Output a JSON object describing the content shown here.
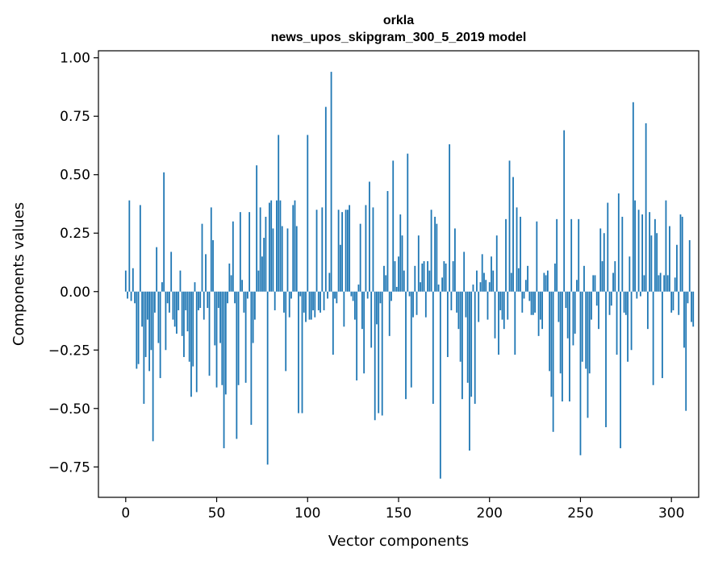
{
  "chart_data": {
    "type": "bar",
    "title_lines": [
      "orkla",
      "news_upos_skipgram_300_5_2019 model"
    ],
    "xlabel": "Vector components",
    "ylabel": "Components values",
    "xlim": [
      -15,
      315
    ],
    "ylim": [
      -0.88,
      1.03
    ],
    "xticks": [
      0,
      50,
      100,
      150,
      200,
      250,
      300
    ],
    "xtick_labels": [
      "0",
      "50",
      "100",
      "150",
      "200",
      "250",
      "300"
    ],
    "yticks": [
      -0.75,
      -0.5,
      -0.25,
      0.0,
      0.25,
      0.5,
      0.75,
      1.0
    ],
    "ytick_labels": [
      "−0.75",
      "−0.50",
      "−0.25",
      "0.00",
      "0.25",
      "0.50",
      "0.75",
      "1.00"
    ],
    "grid": false,
    "bar_color": "#1f77b4",
    "bar_width": 0.8,
    "values": [
      0.09,
      -0.03,
      0.39,
      -0.04,
      0.1,
      -0.05,
      -0.33,
      -0.31,
      0.37,
      -0.15,
      -0.48,
      -0.28,
      -0.12,
      -0.34,
      -0.25,
      -0.64,
      -0.09,
      0.19,
      -0.22,
      -0.37,
      0.04,
      0.51,
      -0.25,
      -0.05,
      -0.09,
      0.17,
      -0.12,
      -0.15,
      -0.18,
      -0.08,
      0.09,
      -0.19,
      -0.28,
      -0.08,
      -0.17,
      -0.3,
      -0.45,
      -0.32,
      0.04,
      -0.43,
      -0.08,
      -0.07,
      0.29,
      -0.12,
      0.16,
      -0.07,
      -0.36,
      0.36,
      0.22,
      -0.23,
      -0.41,
      -0.07,
      -0.22,
      -0.4,
      -0.67,
      -0.44,
      -0.05,
      0.12,
      0.07,
      0.3,
      -0.05,
      -0.63,
      -0.4,
      0.34,
      0.05,
      -0.09,
      -0.39,
      -0.03,
      0.34,
      -0.57,
      -0.22,
      -0.12,
      0.54,
      0.09,
      0.36,
      0.15,
      0.23,
      0.32,
      -0.74,
      0.38,
      0.39,
      0.27,
      -0.08,
      0.39,
      0.67,
      0.39,
      0.28,
      -0.09,
      -0.34,
      0.27,
      -0.11,
      -0.03,
      0.37,
      0.39,
      0.28,
      -0.52,
      -0.02,
      -0.52,
      -0.09,
      -0.13,
      0.67,
      -0.12,
      -0.12,
      -0.08,
      -0.11,
      0.35,
      -0.08,
      -0.09,
      0.36,
      -0.08,
      0.79,
      -0.03,
      0.08,
      0.94,
      -0.27,
      -0.03,
      -0.05,
      0.35,
      0.2,
      0.34,
      -0.15,
      0.35,
      0.35,
      0.37,
      -0.02,
      -0.04,
      -0.12,
      -0.38,
      0.03,
      0.29,
      -0.16,
      -0.35,
      0.37,
      -0.03,
      0.47,
      -0.24,
      0.36,
      -0.55,
      -0.14,
      -0.52,
      -0.05,
      -0.53,
      0.11,
      0.07,
      0.43,
      -0.19,
      -0.04,
      0.56,
      0.13,
      0.02,
      0.15,
      0.33,
      0.24,
      0.09,
      -0.46,
      0.59,
      -0.02,
      -0.41,
      -0.11,
      0.11,
      -0.1,
      0.24,
      0.04,
      0.12,
      0.13,
      -0.11,
      0.13,
      0.09,
      0.35,
      -0.48,
      0.32,
      0.29,
      0.03,
      -0.8,
      0.06,
      0.13,
      0.12,
      -0.28,
      0.63,
      -0.08,
      0.13,
      0.27,
      -0.09,
      -0.16,
      -0.3,
      -0.46,
      0.17,
      -0.11,
      -0.39,
      -0.68,
      -0.45,
      0.03,
      -0.48,
      0.09,
      -0.13,
      0.04,
      0.16,
      0.08,
      0.05,
      -0.12,
      0.04,
      0.15,
      0.09,
      -0.2,
      0.24,
      -0.27,
      -0.08,
      -0.12,
      -0.16,
      0.31,
      -0.12,
      0.56,
      0.08,
      0.49,
      -0.27,
      0.36,
      0.1,
      0.32,
      -0.09,
      -0.03,
      0.05,
      0.11,
      -0.04,
      -0.1,
      -0.1,
      -0.09,
      0.3,
      -0.19,
      -0.12,
      -0.16,
      0.08,
      0.07,
      0.09,
      -0.34,
      -0.45,
      -0.6,
      0.12,
      0.31,
      -0.13,
      -0.35,
      -0.47,
      0.69,
      -0.07,
      -0.2,
      -0.47,
      0.31,
      -0.23,
      -0.18,
      0.05,
      0.31,
      -0.7,
      -0.3,
      0.11,
      -0.33,
      -0.54,
      -0.35,
      -0.12,
      0.07,
      0.07,
      -0.06,
      -0.16,
      0.27,
      0.13,
      0.25,
      -0.58,
      0.38,
      -0.1,
      -0.06,
      0.08,
      0.13,
      -0.27,
      0.42,
      -0.67,
      0.32,
      -0.09,
      -0.1,
      -0.3,
      0.15,
      -0.25,
      0.81,
      0.39,
      -0.03,
      0.35,
      -0.02,
      0.33,
      0.07,
      0.72,
      -0.16,
      0.34,
      0.24,
      -0.4,
      0.31,
      0.25,
      0.07,
      0.08,
      -0.37,
      0.07,
      0.39,
      0.07,
      0.28,
      -0.09,
      -0.08,
      0.06,
      0.2,
      -0.1,
      0.33,
      0.32,
      -0.24,
      -0.51,
      -0.05,
      0.22,
      -0.13,
      -0.15
    ]
  }
}
